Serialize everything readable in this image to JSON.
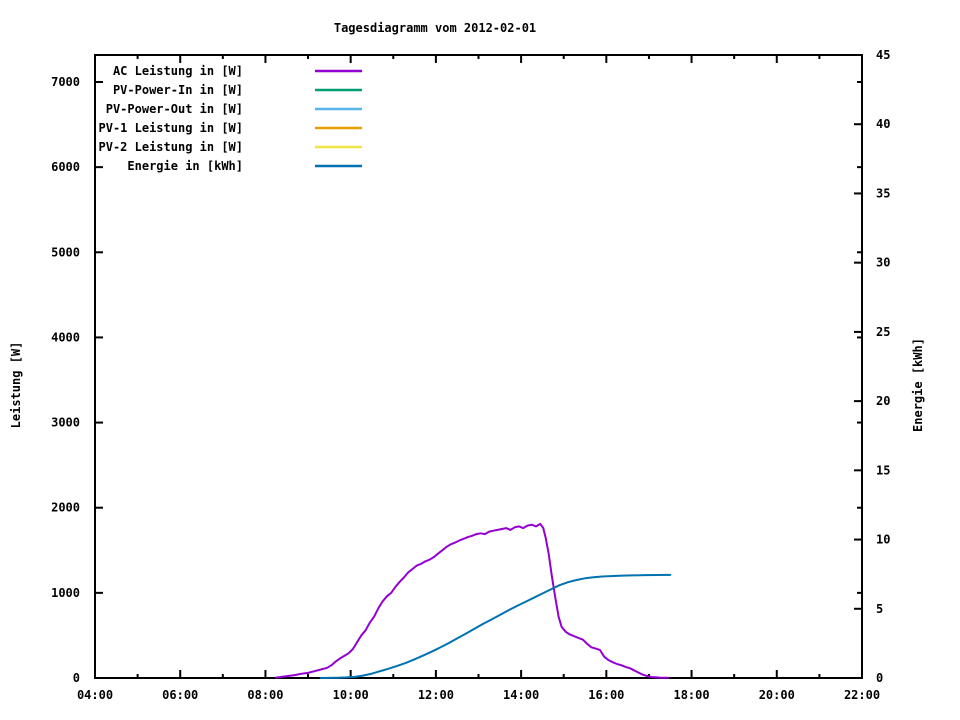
{
  "title": "Tagesdiagramm vom 2012-02-01",
  "chart_data": {
    "type": "line",
    "title": "Tagesdiagramm vom 2012-02-01",
    "background": "#ffffff",
    "axis_color": "#000000",
    "grid": false,
    "legend_position": "top-left-inside",
    "x_axis": {
      "min_hour": 4,
      "max_hour": 22,
      "major_ticks": [
        4,
        6,
        8,
        10,
        12,
        14,
        16,
        18,
        20,
        22
      ],
      "major_tick_labels": [
        "04:00",
        "06:00",
        "08:00",
        "10:00",
        "12:00",
        "14:00",
        "16:00",
        "18:00",
        "20:00",
        "22:00"
      ],
      "minor_ticks": [
        5,
        7,
        9,
        11,
        13,
        15,
        17,
        19,
        21
      ]
    },
    "y_axis": {
      "label": "Leistung [W]",
      "min": 0,
      "max_tick": 7000,
      "range_max": 7316,
      "ticks": [
        0,
        1000,
        2000,
        3000,
        4000,
        5000,
        6000,
        7000
      ]
    },
    "y2_axis": {
      "label": "Energie [kWh]",
      "min": 0,
      "max": 45,
      "ticks": [
        0,
        5,
        10,
        15,
        20,
        25,
        30,
        35,
        40,
        45
      ]
    },
    "legend": [
      {
        "label": "AC Leistung in [W]",
        "color": "#9400d3"
      },
      {
        "label": "PV-Power-In in [W]",
        "color": "#009e73"
      },
      {
        "label": "PV-Power-Out in [W]",
        "color": "#56b4e9"
      },
      {
        "label": "PV-1 Leistung in [W]",
        "color": "#e69f00"
      },
      {
        "label": "PV-2 Leistung in [W]",
        "color": "#f0e442"
      },
      {
        "label": "Energie in [kWh]",
        "color": "#0072b2"
      }
    ],
    "series": [
      {
        "name": "AC Leistung in [W]",
        "color": "#9400d3",
        "axis": "y1",
        "peak_value_w": 1810,
        "points": [
          [
            8.25,
            5
          ],
          [
            8.4,
            15
          ],
          [
            8.55,
            25
          ],
          [
            8.7,
            35
          ],
          [
            8.85,
            50
          ],
          [
            9.0,
            60
          ],
          [
            9.15,
            80
          ],
          [
            9.3,
            100
          ],
          [
            9.45,
            120
          ],
          [
            9.55,
            150
          ],
          [
            9.65,
            195
          ],
          [
            9.75,
            230
          ],
          [
            9.85,
            260
          ],
          [
            9.95,
            290
          ],
          [
            10.05,
            340
          ],
          [
            10.15,
            420
          ],
          [
            10.25,
            500
          ],
          [
            10.35,
            560
          ],
          [
            10.45,
            650
          ],
          [
            10.55,
            720
          ],
          [
            10.65,
            820
          ],
          [
            10.75,
            900
          ],
          [
            10.85,
            960
          ],
          [
            10.95,
            1000
          ],
          [
            11.05,
            1070
          ],
          [
            11.15,
            1130
          ],
          [
            11.25,
            1180
          ],
          [
            11.35,
            1240
          ],
          [
            11.45,
            1280
          ],
          [
            11.55,
            1320
          ],
          [
            11.65,
            1340
          ],
          [
            11.75,
            1370
          ],
          [
            11.85,
            1390
          ],
          [
            11.95,
            1420
          ],
          [
            12.05,
            1460
          ],
          [
            12.15,
            1500
          ],
          [
            12.25,
            1540
          ],
          [
            12.35,
            1570
          ],
          [
            12.45,
            1590
          ],
          [
            12.55,
            1615
          ],
          [
            12.65,
            1635
          ],
          [
            12.75,
            1655
          ],
          [
            12.85,
            1670
          ],
          [
            12.95,
            1690
          ],
          [
            13.05,
            1700
          ],
          [
            13.15,
            1690
          ],
          [
            13.25,
            1720
          ],
          [
            13.35,
            1730
          ],
          [
            13.45,
            1740
          ],
          [
            13.55,
            1750
          ],
          [
            13.65,
            1760
          ],
          [
            13.75,
            1740
          ],
          [
            13.85,
            1770
          ],
          [
            13.95,
            1780
          ],
          [
            14.05,
            1760
          ],
          [
            14.15,
            1790
          ],
          [
            14.25,
            1800
          ],
          [
            14.35,
            1780
          ],
          [
            14.45,
            1810
          ],
          [
            14.52,
            1760
          ],
          [
            14.58,
            1640
          ],
          [
            14.65,
            1450
          ],
          [
            14.72,
            1200
          ],
          [
            14.8,
            950
          ],
          [
            14.88,
            720
          ],
          [
            14.95,
            600
          ],
          [
            15.05,
            540
          ],
          [
            15.15,
            510
          ],
          [
            15.25,
            490
          ],
          [
            15.35,
            470
          ],
          [
            15.45,
            450
          ],
          [
            15.55,
            400
          ],
          [
            15.65,
            360
          ],
          [
            15.75,
            345
          ],
          [
            15.85,
            330
          ],
          [
            15.95,
            250
          ],
          [
            16.05,
            210
          ],
          [
            16.15,
            185
          ],
          [
            16.25,
            165
          ],
          [
            16.35,
            150
          ],
          [
            16.45,
            130
          ],
          [
            16.55,
            115
          ],
          [
            16.65,
            90
          ],
          [
            16.75,
            65
          ],
          [
            16.85,
            40
          ],
          [
            16.95,
            25
          ],
          [
            17.05,
            12
          ],
          [
            17.15,
            8
          ],
          [
            17.25,
            5
          ],
          [
            17.35,
            4
          ],
          [
            17.45,
            3
          ]
        ]
      },
      {
        "name": "PV-Power-In in [W]",
        "color": "#009e73",
        "axis": "y1",
        "points": []
      },
      {
        "name": "PV-Power-Out in [W]",
        "color": "#56b4e9",
        "axis": "y1",
        "points": []
      },
      {
        "name": "PV-1 Leistung in [W]",
        "color": "#e69f00",
        "axis": "y1",
        "points": []
      },
      {
        "name": "PV-2 Leistung in [W]",
        "color": "#f0e442",
        "axis": "y1",
        "points": []
      },
      {
        "name": "Energie in [kWh]",
        "color": "#0072b2",
        "axis": "y2",
        "final_value_kwh": 7.45,
        "points": [
          [
            9.3,
            0.0
          ],
          [
            9.5,
            0.01
          ],
          [
            9.7,
            0.02
          ],
          [
            9.9,
            0.04
          ],
          [
            10.1,
            0.08
          ],
          [
            10.3,
            0.18
          ],
          [
            10.5,
            0.32
          ],
          [
            10.7,
            0.5
          ],
          [
            10.9,
            0.68
          ],
          [
            11.1,
            0.88
          ],
          [
            11.3,
            1.1
          ],
          [
            11.5,
            1.35
          ],
          [
            11.7,
            1.62
          ],
          [
            11.9,
            1.9
          ],
          [
            12.1,
            2.2
          ],
          [
            12.3,
            2.52
          ],
          [
            12.5,
            2.86
          ],
          [
            12.7,
            3.2
          ],
          [
            12.9,
            3.55
          ],
          [
            13.1,
            3.9
          ],
          [
            13.3,
            4.22
          ],
          [
            13.5,
            4.55
          ],
          [
            13.7,
            4.88
          ],
          [
            13.9,
            5.2
          ],
          [
            14.1,
            5.5
          ],
          [
            14.3,
            5.8
          ],
          [
            14.5,
            6.1
          ],
          [
            14.7,
            6.4
          ],
          [
            14.9,
            6.7
          ],
          [
            15.1,
            6.92
          ],
          [
            15.3,
            7.08
          ],
          [
            15.5,
            7.2
          ],
          [
            15.7,
            7.28
          ],
          [
            15.9,
            7.33
          ],
          [
            16.1,
            7.36
          ],
          [
            16.3,
            7.38
          ],
          [
            16.6,
            7.41
          ],
          [
            16.9,
            7.43
          ],
          [
            17.2,
            7.44
          ],
          [
            17.5,
            7.45
          ]
        ]
      }
    ]
  }
}
